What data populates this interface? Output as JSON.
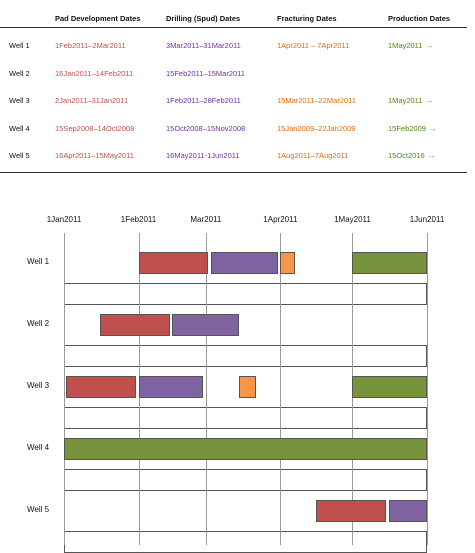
{
  "table": {
    "headers": [
      "Pad Development Dates",
      "Drilling (Spud) Dates",
      "Fracturing Dates",
      "Production Dates"
    ],
    "rows": [
      {
        "well": "Well 1",
        "pad": "1Feb2011–2Mar2011",
        "drill": "3Mar2011–31Mar2011",
        "frac": "1Apr2011 – 7Apr2011",
        "prod": "1May2011"
      },
      {
        "well": "Well 2",
        "pad": "16Jan2011–14Feb2011",
        "drill": "15Feb2011–15Mar2011",
        "frac": "",
        "prod": ""
      },
      {
        "well": "Well 3",
        "pad": "2Jan2011–31Jan2011",
        "drill": "1Feb2011–28Feb2011",
        "frac": "15Mar2011–22Mar2011",
        "prod": "1May2011"
      },
      {
        "well": "Well 4",
        "pad": "15Sep2008–14Oct2008",
        "drill": "15Oct2008–15Nov2008",
        "frac": "15Jan2009–22Jan2009",
        "prod": "15Feb2009"
      },
      {
        "well": "Well 5",
        "pad": "16Apr2011–15May2011",
        "drill": "16May2011-1Jun2011",
        "frac": "1Aug2011–7Aug2011",
        "prod": "15Oct2016"
      }
    ],
    "arrow": "→"
  },
  "colors": {
    "pad": "#c0504d",
    "drill": "#8064a2",
    "frac": "#f79646",
    "prod": "#77933c",
    "pad_text": "#c0504d",
    "drill_text": "#7030a0",
    "frac_text": "#e36c09",
    "prod_text": "#4f8a10"
  },
  "chart_data": {
    "type": "gantt",
    "x_ticks": [
      "1Jan2011",
      "1Feb2011",
      "Mar2011",
      "1Apr2011",
      "1May2011",
      "1Jun2011"
    ],
    "x_tick_dates": [
      "2011-01-01",
      "2011-02-01",
      "2011-03-01",
      "2011-04-01",
      "2011-05-01",
      "2011-06-01"
    ],
    "xlim": [
      "2011-01-01",
      "2011-06-01"
    ],
    "grid": true,
    "rows": [
      {
        "name": "Well 1",
        "bars": [
          {
            "phase": "pad",
            "start": "2011-02-01",
            "end": "2011-03-02"
          },
          {
            "phase": "drill",
            "start": "2011-03-03",
            "end": "2011-03-31"
          },
          {
            "phase": "frac",
            "start": "2011-04-01",
            "end": "2011-04-07"
          },
          {
            "phase": "prod",
            "start": "2011-05-01",
            "end": "2011-06-01"
          }
        ]
      },
      {
        "name": "Well 2",
        "bars": [
          {
            "phase": "pad",
            "start": "2011-01-16",
            "end": "2011-02-14"
          },
          {
            "phase": "drill",
            "start": "2011-02-15",
            "end": "2011-03-15"
          }
        ]
      },
      {
        "name": "Well 3",
        "bars": [
          {
            "phase": "pad",
            "start": "2011-01-02",
            "end": "2011-01-31"
          },
          {
            "phase": "drill",
            "start": "2011-02-01",
            "end": "2011-02-28"
          },
          {
            "phase": "frac",
            "start": "2011-03-15",
            "end": "2011-03-22"
          },
          {
            "phase": "prod",
            "start": "2011-05-01",
            "end": "2011-06-01"
          }
        ]
      },
      {
        "name": "Well 4",
        "bars": [
          {
            "phase": "prod",
            "start": "2011-01-01",
            "end": "2011-06-01"
          }
        ]
      },
      {
        "name": "Well 5",
        "bars": [
          {
            "phase": "pad",
            "start": "2011-04-16",
            "end": "2011-05-15"
          },
          {
            "phase": "drill",
            "start": "2011-05-16",
            "end": "2011-06-01"
          }
        ]
      }
    ]
  }
}
